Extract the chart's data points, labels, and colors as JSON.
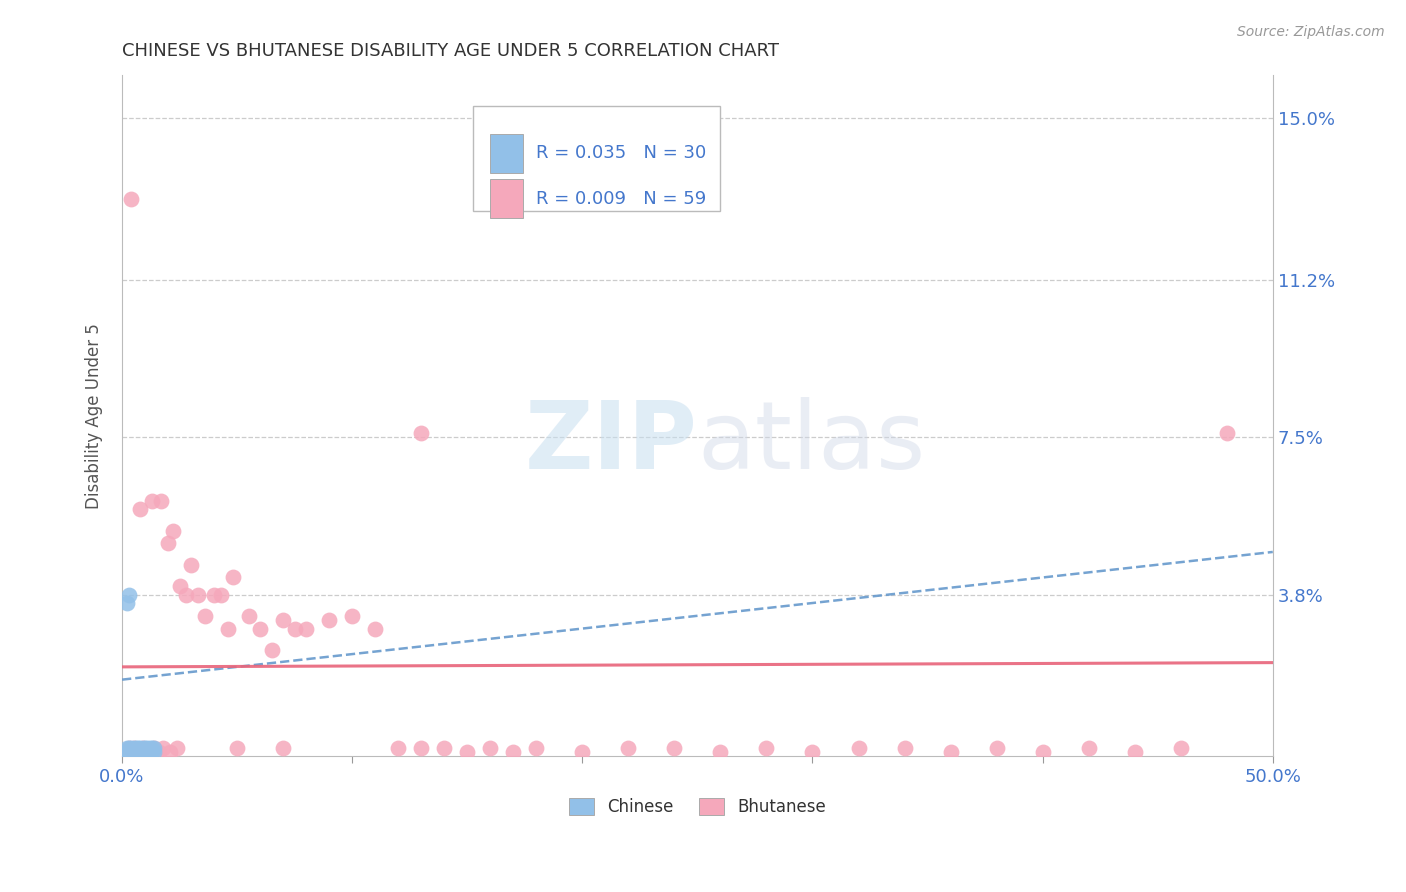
{
  "title": "CHINESE VS BHUTANESE DISABILITY AGE UNDER 5 CORRELATION CHART",
  "source": "Source: ZipAtlas.com",
  "ylabel": "Disability Age Under 5",
  "xlim": [
    0.0,
    0.5
  ],
  "ylim": [
    0.0,
    0.16
  ],
  "xtick_positions": [
    0.0,
    0.1,
    0.2,
    0.3,
    0.4,
    0.5
  ],
  "xticklabels": [
    "0.0%",
    "",
    "",
    "",
    "",
    "50.0%"
  ],
  "ytick_positions": [
    0.0,
    0.038,
    0.075,
    0.112,
    0.15
  ],
  "yticklabels": [
    "",
    "3.8%",
    "7.5%",
    "11.2%",
    "15.0%"
  ],
  "chinese_R": 0.035,
  "chinese_N": 30,
  "bhutanese_R": 0.009,
  "bhutanese_N": 59,
  "chinese_color": "#92c0e8",
  "bhutanese_color": "#f5a8bb",
  "chinese_line_color": "#6699cc",
  "bhutanese_line_color": "#e8647a",
  "grid_color": "#cccccc",
  "title_color": "#333333",
  "axis_label_color": "#555555",
  "tick_label_color": "#4477cc",
  "chinese_pts_x": [
    0.001,
    0.002,
    0.002,
    0.003,
    0.003,
    0.004,
    0.004,
    0.005,
    0.005,
    0.006,
    0.006,
    0.007,
    0.007,
    0.008,
    0.008,
    0.009,
    0.009,
    0.01,
    0.01,
    0.011,
    0.011,
    0.012,
    0.012,
    0.013,
    0.013,
    0.014,
    0.014,
    0.002,
    0.003,
    0.004
  ],
  "chinese_pts_y": [
    0.001,
    0.002,
    0.001,
    0.002,
    0.001,
    0.002,
    0.001,
    0.002,
    0.001,
    0.002,
    0.001,
    0.002,
    0.001,
    0.002,
    0.001,
    0.002,
    0.001,
    0.002,
    0.001,
    0.002,
    0.001,
    0.002,
    0.001,
    0.002,
    0.001,
    0.002,
    0.001,
    0.036,
    0.038,
    0.001
  ],
  "bhutanese_pts_x": [
    0.004,
    0.008,
    0.013,
    0.017,
    0.02,
    0.022,
    0.025,
    0.028,
    0.03,
    0.033,
    0.036,
    0.04,
    0.043,
    0.046,
    0.048,
    0.055,
    0.06,
    0.065,
    0.07,
    0.075,
    0.08,
    0.09,
    0.1,
    0.11,
    0.12,
    0.13,
    0.14,
    0.15,
    0.16,
    0.17,
    0.18,
    0.2,
    0.22,
    0.24,
    0.26,
    0.28,
    0.3,
    0.32,
    0.34,
    0.36,
    0.38,
    0.4,
    0.42,
    0.44,
    0.46,
    0.48,
    0.003,
    0.005,
    0.007,
    0.009,
    0.011,
    0.014,
    0.016,
    0.018,
    0.021,
    0.024,
    0.05,
    0.07,
    0.13
  ],
  "bhutanese_pts_y": [
    0.131,
    0.058,
    0.06,
    0.06,
    0.05,
    0.053,
    0.04,
    0.038,
    0.045,
    0.038,
    0.033,
    0.038,
    0.038,
    0.03,
    0.042,
    0.033,
    0.03,
    0.025,
    0.032,
    0.03,
    0.03,
    0.032,
    0.033,
    0.03,
    0.002,
    0.076,
    0.002,
    0.001,
    0.002,
    0.001,
    0.002,
    0.001,
    0.002,
    0.002,
    0.001,
    0.002,
    0.001,
    0.002,
    0.002,
    0.001,
    0.002,
    0.001,
    0.002,
    0.001,
    0.002,
    0.076,
    0.002,
    0.002,
    0.001,
    0.002,
    0.001,
    0.002,
    0.001,
    0.002,
    0.001,
    0.002,
    0.002,
    0.002,
    0.002
  ],
  "chinese_trend_x": [
    0.0,
    0.5
  ],
  "chinese_trend_y": [
    0.018,
    0.048
  ],
  "bhutanese_trend_x": [
    0.0,
    0.5
  ],
  "bhutanese_trend_y": [
    0.021,
    0.022
  ]
}
